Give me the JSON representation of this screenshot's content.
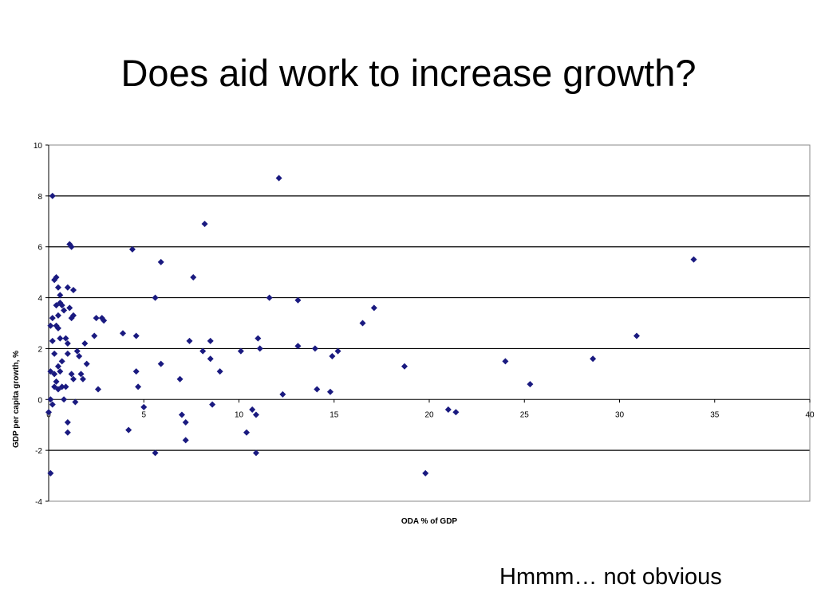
{
  "slide": {
    "title": "Does aid work to increase growth?",
    "caption": "Hmmm… not obvious"
  },
  "chart_data": {
    "type": "scatter",
    "xlabel": "ODA % of GDP",
    "ylabel": "GDP per capita growth, %",
    "xlim": [
      0,
      40
    ],
    "ylim": [
      -4,
      10
    ],
    "xticks": [
      0,
      5,
      10,
      15,
      20,
      25,
      30,
      35,
      40
    ],
    "yticks": [
      -4,
      -2,
      0,
      2,
      4,
      6,
      8,
      10
    ],
    "grid": "horizontal major gridlines",
    "marker": "diamond",
    "color": "#1a1a80",
    "points": [
      [
        0.2,
        8.0
      ],
      [
        0.1,
        -2.9
      ],
      [
        0.0,
        -0.5
      ],
      [
        0.1,
        0.0
      ],
      [
        0.2,
        -0.2
      ],
      [
        0.1,
        1.1
      ],
      [
        0.3,
        1.0
      ],
      [
        0.2,
        2.3
      ],
      [
        0.3,
        1.8
      ],
      [
        0.2,
        3.2
      ],
      [
        0.1,
        2.9
      ],
      [
        0.3,
        4.7
      ],
      [
        0.4,
        4.8
      ],
      [
        0.5,
        4.4
      ],
      [
        0.4,
        3.7
      ],
      [
        0.5,
        3.3
      ],
      [
        0.6,
        3.8
      ],
      [
        0.7,
        3.7
      ],
      [
        0.8,
        3.5
      ],
      [
        0.6,
        4.1
      ],
      [
        0.5,
        2.8
      ],
      [
        0.4,
        2.9
      ],
      [
        0.6,
        2.4
      ],
      [
        0.7,
        1.5
      ],
      [
        0.5,
        1.3
      ],
      [
        0.4,
        0.7
      ],
      [
        0.3,
        0.5
      ],
      [
        0.5,
        0.4
      ],
      [
        0.6,
        1.1
      ],
      [
        0.7,
        0.5
      ],
      [
        0.8,
        0.0
      ],
      [
        0.9,
        2.4
      ],
      [
        1.0,
        2.2
      ],
      [
        1.0,
        1.8
      ],
      [
        1.1,
        3.6
      ],
      [
        1.0,
        4.4
      ],
      [
        1.2,
        3.2
      ],
      [
        1.3,
        4.3
      ],
      [
        1.3,
        3.3
      ],
      [
        1.1,
        6.1
      ],
      [
        1.2,
        6.0
      ],
      [
        1.2,
        1.0
      ],
      [
        1.3,
        0.8
      ],
      [
        1.4,
        -0.1
      ],
      [
        1.5,
        1.9
      ],
      [
        1.6,
        1.7
      ],
      [
        1.7,
        1.0
      ],
      [
        1.8,
        0.8
      ],
      [
        1.9,
        2.2
      ],
      [
        2.0,
        1.4
      ],
      [
        2.4,
        2.5
      ],
      [
        2.6,
        0.4
      ],
      [
        2.5,
        3.2
      ],
      [
        2.8,
        3.2
      ],
      [
        2.9,
        3.1
      ],
      [
        1.0,
        -0.9
      ],
      [
        1.0,
        -1.3
      ],
      [
        0.9,
        0.5
      ],
      [
        3.9,
        2.6
      ],
      [
        4.4,
        5.9
      ],
      [
        4.6,
        2.5
      ],
      [
        4.6,
        1.1
      ],
      [
        4.7,
        0.5
      ],
      [
        4.2,
        -1.2
      ],
      [
        5.0,
        -0.3
      ],
      [
        5.6,
        4.0
      ],
      [
        5.9,
        5.4
      ],
      [
        5.9,
        1.4
      ],
      [
        5.6,
        -2.1
      ],
      [
        6.9,
        0.8
      ],
      [
        7.0,
        -0.6
      ],
      [
        7.2,
        -0.9
      ],
      [
        7.2,
        -1.6
      ],
      [
        7.4,
        2.3
      ],
      [
        7.6,
        4.8
      ],
      [
        8.1,
        1.9
      ],
      [
        8.2,
        6.9
      ],
      [
        8.5,
        2.3
      ],
      [
        8.5,
        1.6
      ],
      [
        8.6,
        -0.2
      ],
      [
        9.0,
        1.1
      ],
      [
        10.1,
        1.9
      ],
      [
        10.4,
        -1.3
      ],
      [
        10.7,
        -0.4
      ],
      [
        10.9,
        -0.6
      ],
      [
        10.9,
        -2.1
      ],
      [
        11.0,
        2.4
      ],
      [
        11.1,
        2.0
      ],
      [
        11.6,
        4.0
      ],
      [
        12.1,
        8.7
      ],
      [
        12.3,
        0.2
      ],
      [
        13.1,
        3.9
      ],
      [
        13.1,
        2.1
      ],
      [
        14.0,
        2.0
      ],
      [
        14.1,
        0.4
      ],
      [
        14.8,
        0.3
      ],
      [
        14.9,
        1.7
      ],
      [
        15.2,
        1.9
      ],
      [
        16.5,
        3.0
      ],
      [
        17.1,
        3.6
      ],
      [
        18.7,
        1.3
      ],
      [
        19.8,
        -2.9
      ],
      [
        21.0,
        -0.4
      ],
      [
        21.4,
        -0.5
      ],
      [
        24.0,
        1.5
      ],
      [
        25.3,
        0.6
      ],
      [
        28.6,
        1.6
      ],
      [
        30.9,
        2.5
      ],
      [
        33.9,
        5.5
      ]
    ]
  }
}
